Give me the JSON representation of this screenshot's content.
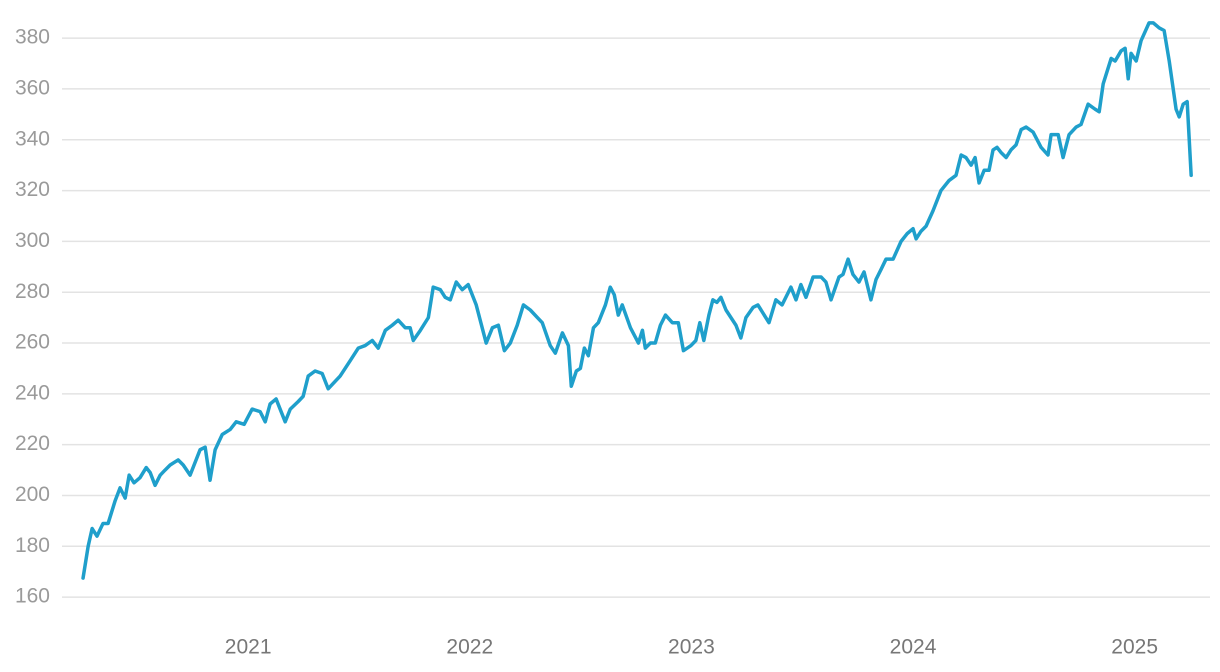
{
  "chart_data": {
    "type": "line",
    "x": [
      2020.255,
      2020.278,
      2020.296,
      2020.318,
      2020.345,
      2020.368,
      2020.4,
      2020.422,
      2020.445,
      2020.463,
      2020.485,
      2020.512,
      2020.54,
      2020.558,
      2020.58,
      2020.603,
      2020.625,
      2020.648,
      2020.684,
      2020.707,
      2020.738,
      2020.783,
      2020.806,
      2020.828,
      2020.851,
      2020.883,
      2020.919,
      2020.946,
      2020.982,
      2021.018,
      2021.054,
      2021.077,
      2021.099,
      2021.126,
      2021.167,
      2021.19,
      2021.226,
      2021.248,
      2021.271,
      2021.302,
      2021.334,
      2021.361,
      2021.415,
      2021.46,
      2021.497,
      2021.528,
      2021.56,
      2021.587,
      2021.619,
      2021.65,
      2021.677,
      2021.709,
      2021.731,
      2021.745,
      2021.777,
      2021.813,
      2021.835,
      2021.867,
      2021.889,
      2021.912,
      2021.939,
      2021.966,
      2021.993,
      2022.029,
      2022.074,
      2022.102,
      2022.129,
      2022.156,
      2022.183,
      2022.214,
      2022.242,
      2022.273,
      2022.305,
      2022.327,
      2022.363,
      2022.386,
      2022.418,
      2022.445,
      2022.458,
      2022.481,
      2022.499,
      2022.517,
      2022.535,
      2022.558,
      2022.58,
      2022.612,
      2022.634,
      2022.652,
      2022.67,
      2022.688,
      2022.725,
      2022.761,
      2022.779,
      2022.792,
      2022.815,
      2022.837,
      2022.86,
      2022.883,
      2022.914,
      2022.941,
      2022.964,
      2022.998,
      2023.02,
      2023.038,
      2023.056,
      2023.079,
      2023.097,
      2023.115,
      2023.133,
      2023.156,
      2023.201,
      2023.223,
      2023.246,
      2023.278,
      2023.3,
      2023.35,
      2023.381,
      2023.409,
      2023.449,
      2023.472,
      2023.494,
      2023.517,
      2023.549,
      2023.585,
      2023.607,
      2023.63,
      2023.666,
      2023.684,
      2023.707,
      2023.729,
      2023.756,
      2023.779,
      2023.81,
      2023.833,
      2023.856,
      2023.878,
      2023.91,
      2023.946,
      2023.973,
      2024.0,
      2024.014,
      2024.036,
      2024.059,
      2024.09,
      2024.126,
      2024.163,
      2024.194,
      2024.217,
      2024.239,
      2024.262,
      2024.28,
      2024.298,
      2024.321,
      2024.343,
      2024.361,
      2024.379,
      2024.397,
      2024.42,
      2024.442,
      2024.465,
      2024.488,
      2024.51,
      2024.542,
      2024.578,
      2024.609,
      2024.623,
      2024.655,
      2024.677,
      2024.704,
      2024.736,
      2024.758,
      2024.79,
      2024.822,
      2024.84,
      2024.858,
      2024.894,
      2024.912,
      2024.939,
      2024.957,
      2024.971,
      2024.984,
      2025.007,
      2025.029,
      2025.065,
      2025.084,
      2025.111,
      2025.133,
      2025.156,
      2025.187,
      2025.201,
      2025.219,
      2025.237,
      2025.255
    ],
    "values": [
      167.5,
      180,
      187,
      184,
      189,
      189,
      198,
      203,
      199,
      208,
      205,
      207,
      211,
      209,
      204,
      208,
      210,
      212,
      214,
      212,
      208,
      218,
      219,
      206,
      218,
      224,
      226,
      229,
      228,
      234,
      233,
      229,
      236,
      238,
      229,
      234,
      237,
      239,
      247,
      249,
      248,
      242,
      247,
      253,
      258,
      259,
      261,
      258,
      265,
      267,
      269,
      266,
      266,
      261,
      265,
      270,
      282,
      281,
      278,
      277,
      284,
      281,
      283,
      275,
      260,
      266,
      267,
      257,
      260,
      267,
      275,
      273,
      270,
      268,
      259,
      256,
      264,
      259,
      243,
      249,
      250,
      258,
      255,
      266,
      268,
      275,
      282,
      279,
      271,
      275,
      266,
      260,
      265,
      258,
      260,
      260,
      267,
      271,
      268,
      268,
      257,
      259,
      261,
      268,
      261,
      271,
      277,
      276,
      278,
      273,
      267,
      262,
      270,
      274,
      275,
      268,
      277,
      275,
      282,
      277,
      283,
      278,
      286,
      286,
      284,
      277,
      286,
      287,
      293,
      287,
      284,
      288,
      277,
      285,
      289,
      293,
      293,
      300,
      303,
      305,
      301,
      304,
      306,
      312,
      320,
      324,
      326,
      334,
      333,
      330,
      333,
      323,
      328,
      328,
      336,
      337,
      335,
      333,
      336,
      338,
      344,
      345,
      343,
      337,
      334,
      342,
      342,
      333,
      342,
      345,
      346,
      354,
      352,
      351,
      362,
      372,
      371,
      375,
      376,
      364,
      374,
      371,
      379,
      386,
      386,
      384,
      383,
      371,
      352,
      349,
      354,
      355,
      326
    ],
    "color": "#1f9fcb",
    "xlim": [
      2020.16,
      2025.34
    ],
    "xticks": [
      2021,
      2022,
      2023,
      2024,
      2025
    ],
    "ylim": [
      151,
      395
    ],
    "yticks": [
      160,
      180,
      200,
      220,
      240,
      260,
      280,
      300,
      320,
      340,
      360,
      380
    ],
    "grid": true
  }
}
